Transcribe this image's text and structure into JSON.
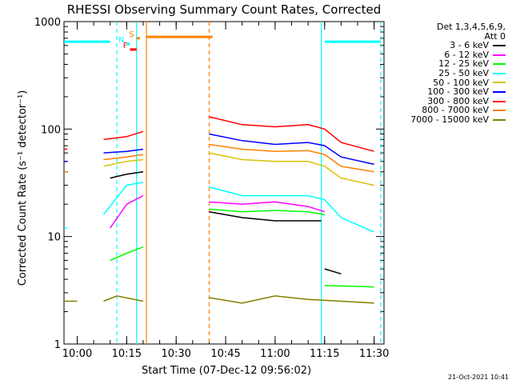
{
  "chart_data": {
    "type": "line",
    "title": "RHESSI Observing Summary Count Rates, Corrected",
    "xlabel": "Start Time (07-Dec-12 09:56:02)",
    "ylabel": "Corrected Count Rate (s⁻¹ detector⁻¹)",
    "x_ticks": [
      "10:00",
      "10:15",
      "10:30",
      "10:45",
      "11:00",
      "11:15",
      "11:30"
    ],
    "y_ticks": [
      "1",
      "10",
      "100",
      "1000"
    ],
    "y_scale": "log",
    "ylim": [
      1,
      1000
    ],
    "xlim": [
      "09:56",
      "11:33"
    ],
    "grid": false,
    "legend_position": "top-right outside",
    "legend_title": "Det 1,3,4,5,6,9,",
    "legend_subtitle": "Att 0",
    "footer_date": "21-Oct-2021 10:41",
    "flag_labels": [
      "F",
      "N",
      "S"
    ],
    "series": [
      {
        "name": "3 - 6 keV",
        "color": "#000000",
        "segments": [
          {
            "points": [
              [
                "10:10",
                35
              ],
              [
                "10:15",
                38
              ],
              [
                "10:20",
                40
              ]
            ]
          },
          {
            "points": [
              [
                "10:40",
                17
              ],
              [
                "10:50",
                15
              ],
              [
                "11:00",
                14
              ],
              [
                "11:10",
                14
              ],
              [
                "11:14",
                14
              ]
            ]
          },
          {
            "points": [
              [
                "11:15",
                5
              ],
              [
                "11:20",
                4.5
              ]
            ]
          }
        ]
      },
      {
        "name": "6 - 12 keV",
        "color": "#ff00ff",
        "segments": [
          {
            "points": [
              [
                "10:10",
                12
              ],
              [
                "10:15",
                20
              ],
              [
                "10:20",
                24
              ]
            ]
          },
          {
            "points": [
              [
                "10:40",
                21
              ],
              [
                "10:50",
                20
              ],
              [
                "11:00",
                21
              ],
              [
                "11:10",
                19
              ],
              [
                "11:15",
                17
              ]
            ]
          }
        ]
      },
      {
        "name": "12 - 25 keV",
        "color": "#00ff00",
        "segments": [
          {
            "points": [
              [
                "10:10",
                6
              ],
              [
                "10:15",
                7
              ],
              [
                "10:20",
                8
              ]
            ]
          },
          {
            "points": [
              [
                "10:40",
                18
              ],
              [
                "10:50",
                17
              ],
              [
                "11:00",
                17.5
              ],
              [
                "11:10",
                17
              ],
              [
                "11:15",
                16
              ]
            ]
          },
          {
            "points": [
              [
                "11:15",
                3.5
              ],
              [
                "11:30",
                3.4
              ]
            ]
          }
        ]
      },
      {
        "name": "25 - 50 keV",
        "color": "#00ffff",
        "segments": [
          {
            "points": [
              [
                "09:56",
                12
              ],
              [
                "09:57",
                12
              ]
            ]
          },
          {
            "points": [
              [
                "10:08",
                16
              ],
              [
                "10:12",
                23
              ],
              [
                "10:15",
                30
              ],
              [
                "10:20",
                32
              ]
            ]
          },
          {
            "points": [
              [
                "10:40",
                29
              ],
              [
                "10:50",
                24
              ],
              [
                "11:00",
                24
              ],
              [
                "11:10",
                24
              ],
              [
                "11:15",
                22
              ],
              [
                "11:20",
                15
              ],
              [
                "11:30",
                11
              ]
            ]
          }
        ]
      },
      {
        "name": "50 - 100 keV",
        "color": "#d4c400",
        "segments": [
          {
            "points": [
              [
                "10:08",
                45
              ],
              [
                "10:12",
                48
              ],
              [
                "10:15",
                50
              ],
              [
                "10:20",
                52
              ]
            ]
          },
          {
            "points": [
              [
                "10:40",
                60
              ],
              [
                "10:50",
                52
              ],
              [
                "11:00",
                50
              ],
              [
                "11:10",
                50
              ],
              [
                "11:15",
                45
              ],
              [
                "11:20",
                35
              ],
              [
                "11:30",
                30
              ]
            ]
          }
        ]
      },
      {
        "name": "100 - 300 keV",
        "color": "#0000ff",
        "segments": [
          {
            "points": [
              [
                "09:56",
                50
              ],
              [
                "09:57",
                50
              ]
            ]
          },
          {
            "points": [
              [
                "10:08",
                60
              ],
              [
                "10:15",
                62
              ],
              [
                "10:20",
                65
              ]
            ]
          },
          {
            "points": [
              [
                "10:40",
                90
              ],
              [
                "10:50",
                78
              ],
              [
                "11:00",
                72
              ],
              [
                "11:10",
                75
              ],
              [
                "11:15",
                70
              ],
              [
                "11:20",
                55
              ],
              [
                "11:30",
                47
              ]
            ]
          }
        ]
      },
      {
        "name": "300 - 800 keV",
        "color": "#ff0000",
        "segments": [
          {
            "points": [
              [
                "09:56",
                65
              ],
              [
                "09:57",
                65
              ]
            ]
          },
          {
            "points": [
              [
                "10:08",
                80
              ],
              [
                "10:15",
                85
              ],
              [
                "10:20",
                95
              ]
            ]
          },
          {
            "points": [
              [
                "10:40",
                130
              ],
              [
                "10:50",
                110
              ],
              [
                "11:00",
                105
              ],
              [
                "11:10",
                110
              ],
              [
                "11:15",
                100
              ],
              [
                "11:20",
                75
              ],
              [
                "11:30",
                62
              ]
            ]
          }
        ]
      },
      {
        "name": "800 - 7000 keV",
        "color": "#ff8000",
        "segments": [
          {
            "points": [
              [
                "09:56",
                40
              ],
              [
                "09:57",
                40
              ]
            ]
          },
          {
            "points": [
              [
                "10:08",
                52
              ],
              [
                "10:15",
                55
              ],
              [
                "10:20",
                58
              ]
            ]
          },
          {
            "points": [
              [
                "10:40",
                72
              ],
              [
                "10:50",
                65
              ],
              [
                "11:00",
                62
              ],
              [
                "11:10",
                63
              ],
              [
                "11:15",
                58
              ],
              [
                "11:20",
                45
              ],
              [
                "11:30",
                40
              ]
            ]
          }
        ]
      },
      {
        "name": "7000 - 15000 keV",
        "color": "#808000",
        "segments": [
          {
            "points": [
              [
                "09:56",
                2.5
              ],
              [
                "10:00",
                2.5
              ]
            ]
          },
          {
            "points": [
              [
                "10:08",
                2.5
              ],
              [
                "10:12",
                2.8
              ],
              [
                "10:20",
                2.5
              ]
            ]
          },
          {
            "points": [
              [
                "10:40",
                2.7
              ],
              [
                "10:50",
                2.4
              ],
              [
                "11:00",
                2.8
              ],
              [
                "11:10",
                2.6
              ],
              [
                "11:20",
                2.5
              ],
              [
                "11:30",
                2.4
              ]
            ]
          }
        ]
      }
    ],
    "flags": [
      {
        "label": "",
        "color": "#00ffff",
        "y": 650,
        "from": "09:56",
        "to": "10:10"
      },
      {
        "label": "",
        "color": "#00ffff",
        "y": 650,
        "from": "11:15",
        "to": "11:32"
      },
      {
        "label": "",
        "color": "#ff8000",
        "y": 720,
        "from": "10:21",
        "to": "10:41"
      },
      {
        "label": "F",
        "color": "#ff0000",
        "y": 550,
        "from": "10:16",
        "to": "10:18"
      },
      {
        "label": "N",
        "color": "#00ffff",
        "y": 620,
        "from": "10:15",
        "to": "10:16"
      },
      {
        "label": "S",
        "color": "#ff8000",
        "y": 700,
        "from": "10:18",
        "to": "10:19"
      }
    ],
    "vlines": [
      {
        "time": "10:12",
        "color": "#00ffff",
        "dashed": true
      },
      {
        "time": "10:18",
        "color": "#00ffff",
        "dashed": false
      },
      {
        "time": "10:21",
        "color": "#ff8000",
        "dashed": false
      },
      {
        "time": "10:40",
        "color": "#ff8000",
        "dashed": true
      },
      {
        "time": "11:14",
        "color": "#00ffff",
        "dashed": false
      },
      {
        "time": "11:32",
        "color": "#00ffff",
        "dashed": true
      }
    ]
  }
}
